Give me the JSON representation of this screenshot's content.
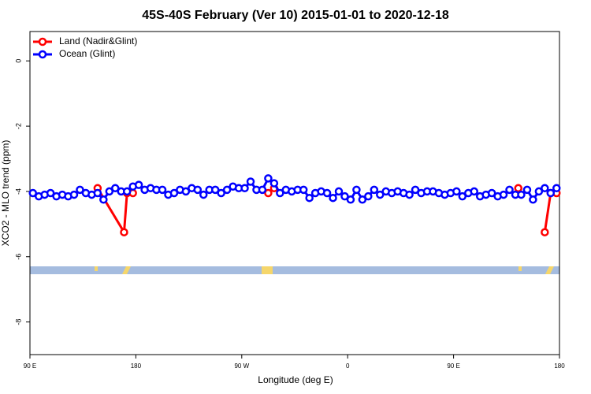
{
  "chart_data": {
    "type": "line",
    "title": "45S-40S February (Ver 10)   2015-01-01 to 2020-12-18",
    "x_label": "Longitude (deg E)",
    "y_label": "XCO2 - MLO trend (ppm)",
    "xlim": [
      90,
      540
    ],
    "xticks": [
      {
        "value": 90,
        "label": "90 E"
      },
      {
        "value": 180,
        "label": "180"
      },
      {
        "value": 270,
        "label": "90 W"
      },
      {
        "value": 360,
        "label": "0"
      },
      {
        "value": 450,
        "label": "90 E"
      },
      {
        "value": 540,
        "label": "180"
      }
    ],
    "ylim": [
      -9,
      0.9
    ],
    "yticks": [
      0,
      -2,
      -4,
      -6,
      -8
    ],
    "legend": "topleft",
    "series": [
      {
        "name": "Land (Nadir&Glint)",
        "color": "#ff0000",
        "x": [
          147.5,
          170,
          172.5,
          177.5,
          235,
          292.5,
          297.5,
          400,
          505,
          520,
          527.5,
          532.5,
          537.5
        ],
        "values": [
          -3.9,
          -5.25,
          -4.05,
          -4.05,
          null,
          -4.05,
          -3.9,
          null,
          -3.9,
          null,
          -5.25,
          -4.05,
          -4.05
        ]
      },
      {
        "name": "Ocean (Glint)",
        "color": "#0000ff",
        "x": [
          92.5,
          97.5,
          102.5,
          107.5,
          112.5,
          117.5,
          122.5,
          127.5,
          132.5,
          137.5,
          142.5,
          147.5,
          152.5,
          157.5,
          162.5,
          167.5,
          172.5,
          177.5,
          182.5,
          187.5,
          192.5,
          197.5,
          202.5,
          207.5,
          212.5,
          217.5,
          222.5,
          227.5,
          232.5,
          237.5,
          242.5,
          247.5,
          252.5,
          257.5,
          262.5,
          267.5,
          272.5,
          277.5,
          282.5,
          287.5,
          292.5,
          297.5,
          302.5,
          307.5,
          312.5,
          317.5,
          322.5,
          327.5,
          332.5,
          337.5,
          342.5,
          347.5,
          352.5,
          357.5,
          362.5,
          367.5,
          372.5,
          377.5,
          382.5,
          387.5,
          392.5,
          397.5,
          402.5,
          407.5,
          412.5,
          417.5,
          422.5,
          427.5,
          432.5,
          437.5,
          442.5,
          447.5,
          452.5,
          457.5,
          462.5,
          467.5,
          472.5,
          477.5,
          482.5,
          487.5,
          492.5,
          497.5,
          502.5,
          507.5,
          512.5,
          517.5,
          522.5,
          527.5,
          532.5,
          537.5
        ],
        "values": [
          -4.05,
          -4.15,
          -4.1,
          -4.05,
          -4.15,
          -4.1,
          -4.15,
          -4.1,
          -3.95,
          -4.05,
          -4.1,
          -4.05,
          -4.25,
          -4.0,
          -3.9,
          -4.0,
          -4.0,
          -3.85,
          -3.8,
          -3.95,
          -3.9,
          -3.95,
          -3.95,
          -4.1,
          -4.05,
          -3.95,
          -4.0,
          -3.9,
          -3.95,
          -4.1,
          -3.95,
          -3.95,
          -4.05,
          -3.95,
          -3.85,
          -3.9,
          -3.9,
          -3.7,
          -3.95,
          -3.95,
          -3.6,
          -3.75,
          -4.05,
          -3.95,
          -4.0,
          -3.95,
          -3.95,
          -4.2,
          -4.05,
          -4.0,
          -4.05,
          -4.2,
          -4.0,
          -4.15,
          -4.25,
          -3.95,
          -4.25,
          -4.15,
          -3.95,
          -4.1,
          -4.0,
          -4.05,
          -4.0,
          -4.05,
          -4.1,
          -3.95,
          -4.05,
          -4.0,
          -4.0,
          -4.05,
          -4.1,
          -4.05,
          -4.0,
          -4.15,
          -4.05,
          -4.0,
          -4.15,
          -4.1,
          -4.05,
          -4.15,
          -4.1,
          -3.95,
          -4.1,
          -4.1,
          -3.95,
          -4.25,
          -4.0,
          -3.9,
          -4.05,
          -3.9
        ]
      }
    ]
  }
}
